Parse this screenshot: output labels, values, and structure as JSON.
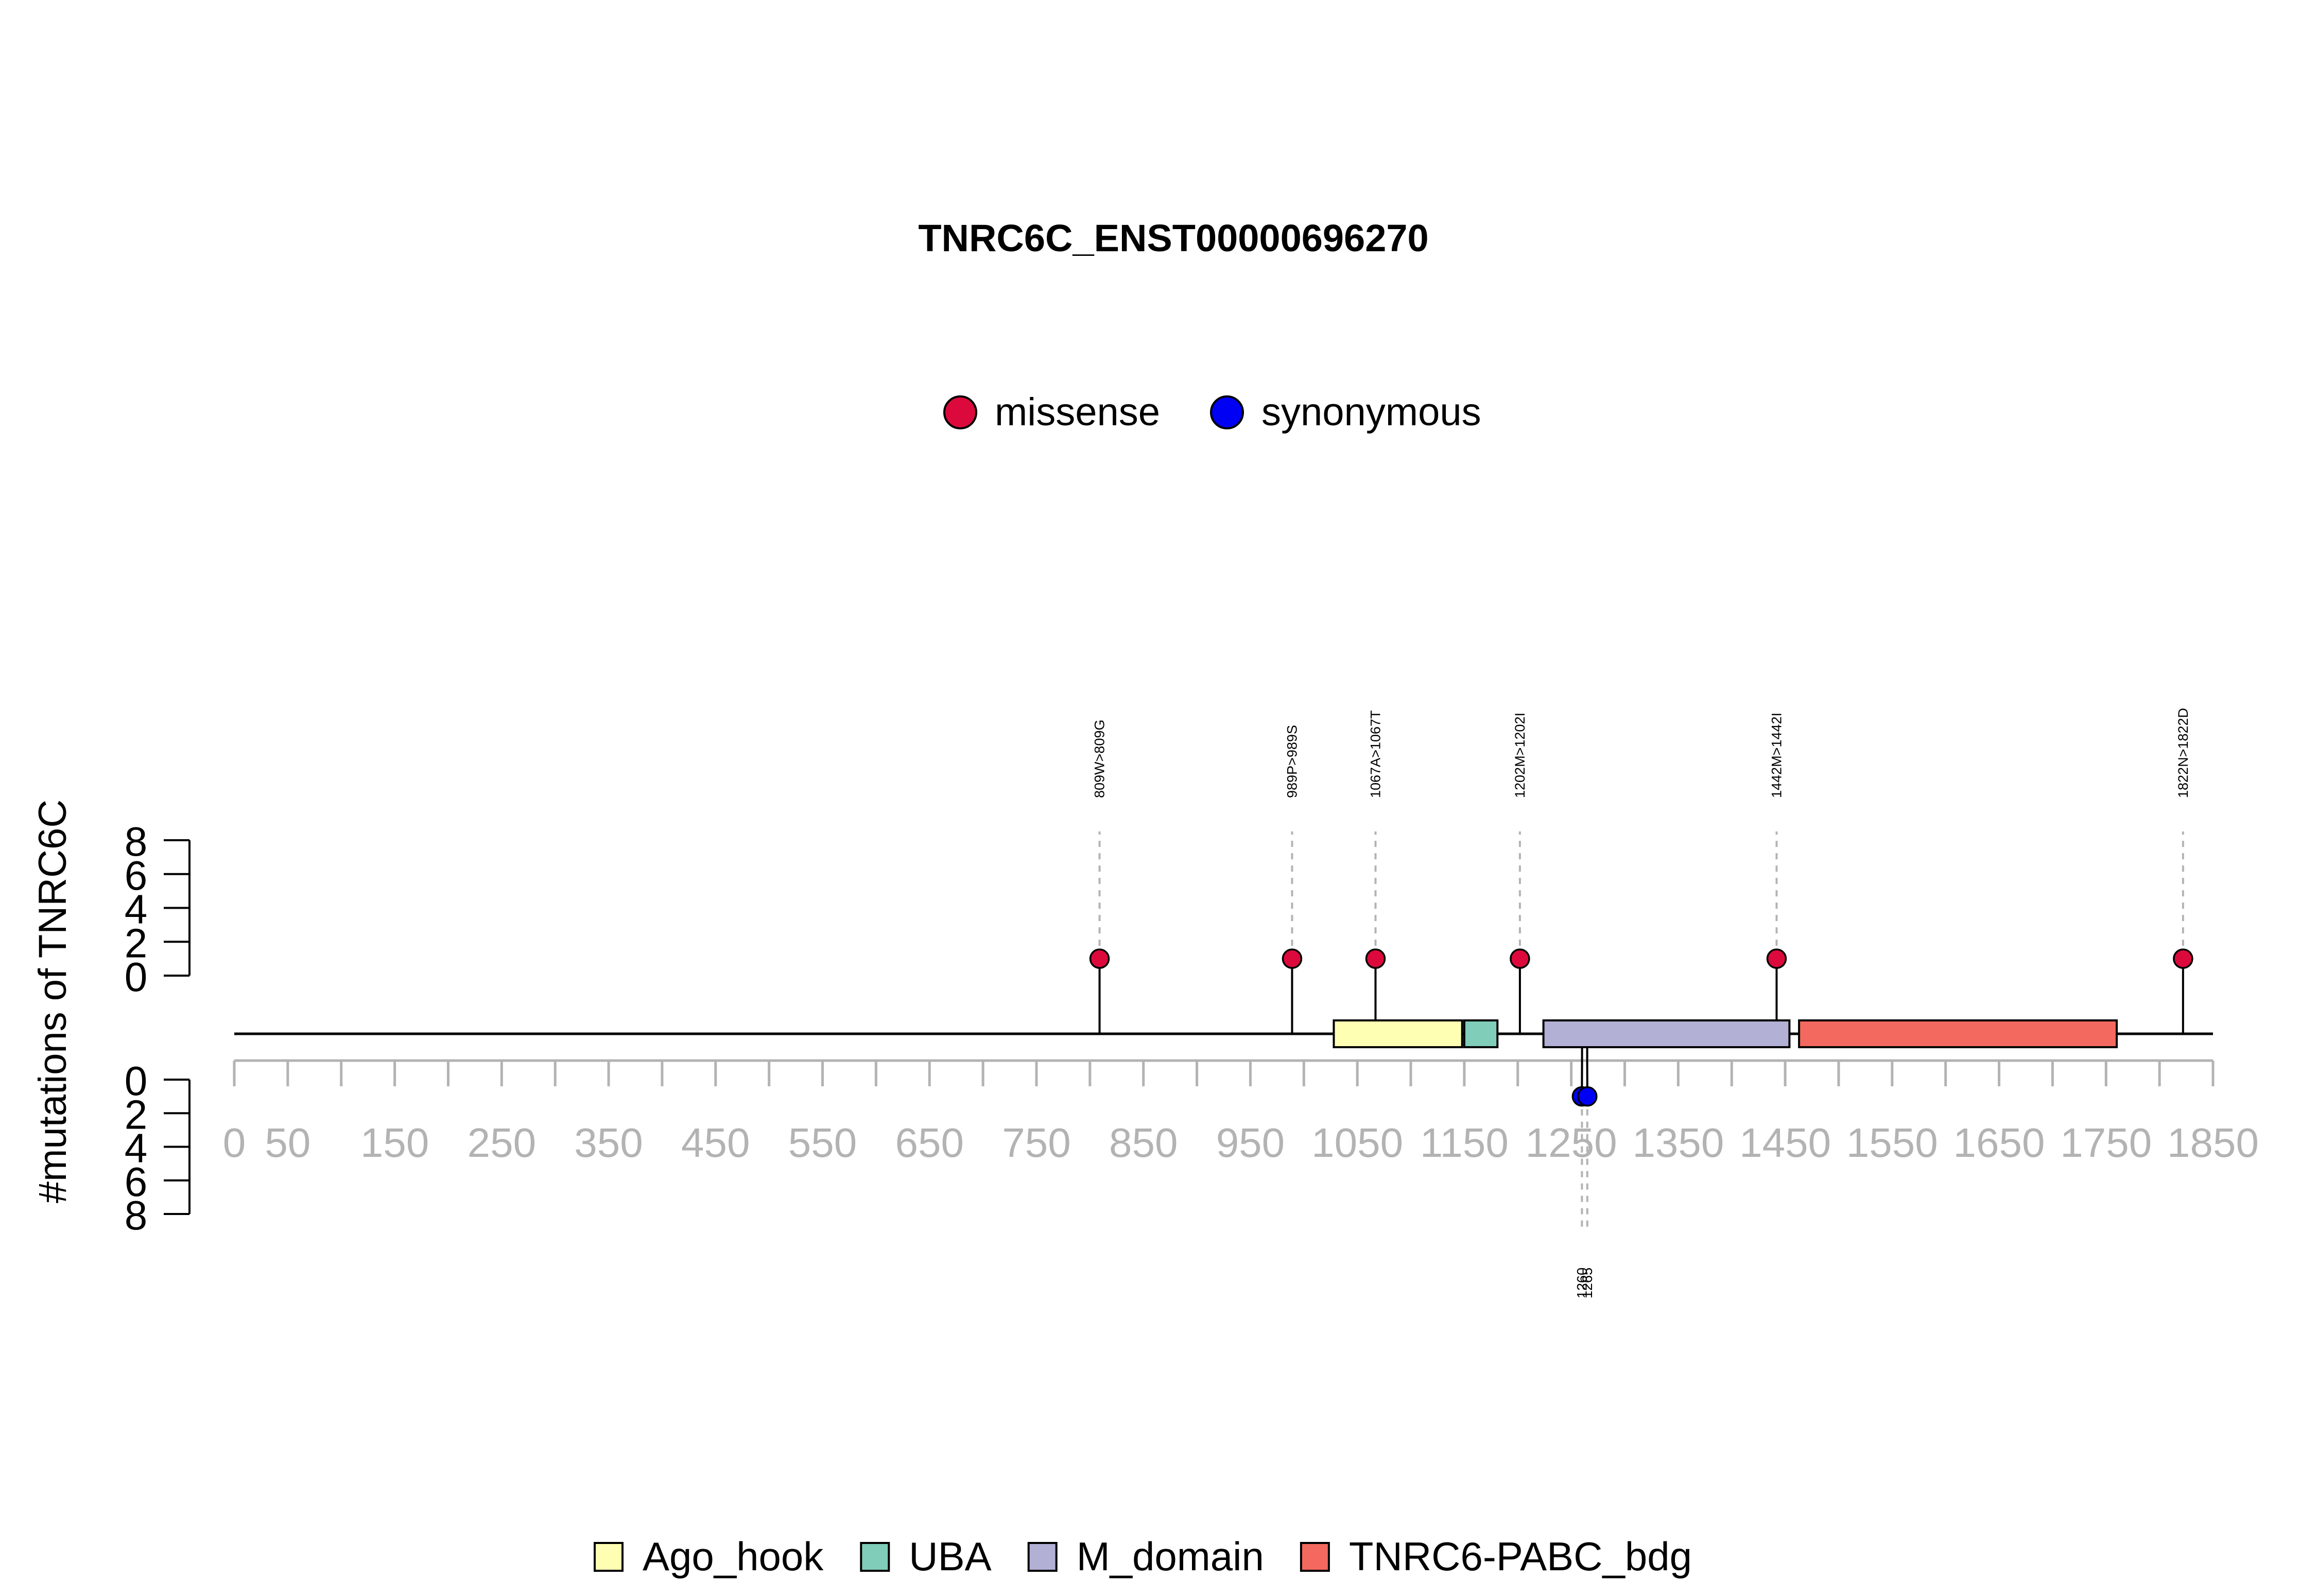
{
  "chart_data": {
    "type": "lollipop",
    "title": "TNRC6C_ENST00000696270",
    "ylabel": "#mutations of TNRC6C",
    "protein_length": 1850,
    "xlim": [
      0,
      1850
    ],
    "x_ticks": [
      0,
      50,
      150,
      250,
      350,
      450,
      550,
      650,
      750,
      850,
      950,
      1050,
      1150,
      1250,
      1350,
      1450,
      1550,
      1650,
      1750,
      1850
    ],
    "x_minor_step": 50,
    "y_ticks": [
      "0",
      "2",
      "4",
      "6",
      "8"
    ],
    "ylim": [
      0,
      8
    ],
    "mutation_legend": [
      {
        "label": "missense",
        "color": "#dc0a3c"
      },
      {
        "label": "synonymous",
        "color": "#0000f5"
      }
    ],
    "domains": [
      {
        "name": "Ago_hook",
        "start": 1028,
        "end": 1148,
        "color": "#ffffb3"
      },
      {
        "name": "UBA",
        "start": 1150,
        "end": 1181,
        "color": "#80cdb9"
      },
      {
        "name": "M_domain",
        "start": 1224,
        "end": 1454,
        "color": "#b3b0d6"
      },
      {
        "name": "TNRC6-PABC_bdg",
        "start": 1463,
        "end": 1760,
        "color": "#f4695f"
      }
    ],
    "mutations": [
      {
        "position": 809,
        "label": "809W>809G",
        "type": "missense",
        "count": 1,
        "side": "top"
      },
      {
        "position": 989,
        "label": "989P>989S",
        "type": "missense",
        "count": 1,
        "side": "top"
      },
      {
        "position": 1067,
        "label": "1067A>1067T",
        "type": "missense",
        "count": 1,
        "side": "top"
      },
      {
        "position": 1202,
        "label": "1202M>1202I",
        "type": "missense",
        "count": 1,
        "side": "top"
      },
      {
        "position": 1442,
        "label": "1442M>1442I",
        "type": "missense",
        "count": 1,
        "side": "top"
      },
      {
        "position": 1822,
        "label": "1822N>1822D",
        "type": "missense",
        "count": 1,
        "side": "top"
      },
      {
        "position": 1260,
        "label": "1260",
        "type": "synonymous",
        "count": 1,
        "side": "bottom"
      },
      {
        "position": 1265,
        "label": "1265",
        "type": "synonymous",
        "count": 1,
        "side": "bottom"
      }
    ]
  }
}
